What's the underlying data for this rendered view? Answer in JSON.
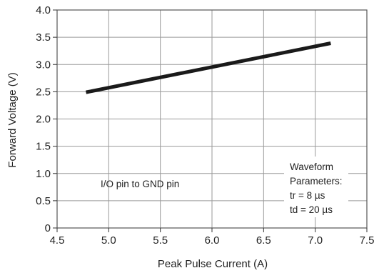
{
  "chart_data": {
    "type": "line",
    "title": "",
    "xlabel": "Peak Pulse Current (A)",
    "ylabel": "Forward Voltage (V)",
    "xlim": [
      4.5,
      7.5
    ],
    "ylim": [
      0,
      4.0
    ],
    "xticks": [
      "4.5",
      "5.0",
      "5.5",
      "6.0",
      "6.5",
      "7.0",
      "7.5"
    ],
    "yticks": [
      "0",
      "0.5",
      "1.0",
      "1.5",
      "2.0",
      "2.5",
      "3.0",
      "3.5",
      "4.0"
    ],
    "grid": true,
    "series": [
      {
        "x": [
          4.78,
          7.15
        ],
        "y": [
          2.49,
          3.39
        ],
        "color": "#1a1a1a"
      }
    ],
    "annotations": {
      "condition": "I/O pin to GND pin",
      "waveform_lines": [
        "Waveform",
        "Parameters:",
        "tr = 8 µs",
        "td = 20 µs"
      ]
    }
  },
  "colors": {
    "line": "#1a1a1a",
    "grid": "#9a9a9a",
    "frame": "#555555"
  }
}
